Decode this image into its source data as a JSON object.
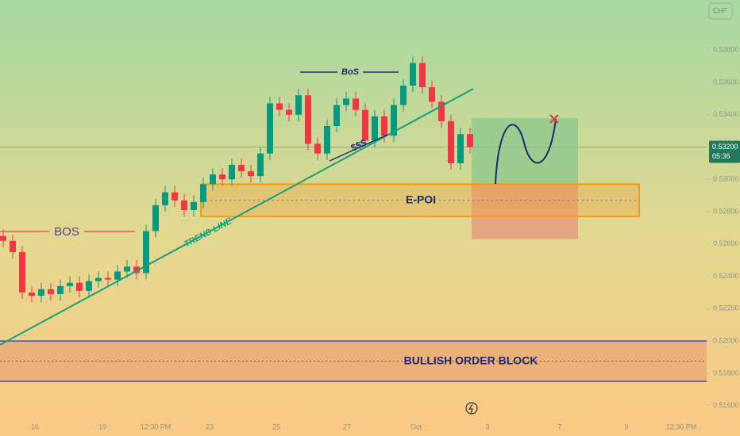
{
  "chart_data": {
    "type": "candlestick",
    "symbol": "CHF",
    "up_color": "#089981",
    "down_color": "#f23645",
    "open": [
      0.5265,
      0.5262,
      0.5255,
      0.523,
      0.5228,
      0.5232,
      0.5229,
      0.5234,
      0.5236,
      0.5231,
      0.5237,
      0.5239,
      0.5238,
      0.5243,
      0.5246,
      0.5242,
      0.5268,
      0.5284,
      0.5292,
      0.5287,
      0.5281,
      0.5286,
      0.5297,
      0.5303,
      0.53,
      0.5309,
      0.5305,
      0.5302,
      0.5316,
      0.5347,
      0.5343,
      0.534,
      0.5352,
      0.5322,
      0.5316,
      0.5333,
      0.5346,
      0.535,
      0.5343,
      0.5324,
      0.5339,
      0.5327,
      0.5346,
      0.5358,
      0.5372,
      0.5357,
      0.5348,
      0.5336,
      0.531,
      0.5328
    ],
    "high": [
      0.5269,
      0.5266,
      0.5259,
      0.5234,
      0.5236,
      0.5236,
      0.5238,
      0.524,
      0.524,
      0.5241,
      0.5243,
      0.5243,
      0.5247,
      0.525,
      0.525,
      0.5272,
      0.5288,
      0.5296,
      0.5296,
      0.5291,
      0.529,
      0.5301,
      0.5307,
      0.5307,
      0.5313,
      0.5313,
      0.5309,
      0.532,
      0.5351,
      0.5351,
      0.5347,
      0.5356,
      0.5356,
      0.5326,
      0.5337,
      0.535,
      0.5354,
      0.5354,
      0.5347,
      0.5343,
      0.5343,
      0.535,
      0.5362,
      0.5376,
      0.5376,
      0.5361,
      0.5352,
      0.534,
      0.5332,
      0.5332
    ],
    "low": [
      0.5258,
      0.5251,
      0.5226,
      0.5224,
      0.5224,
      0.5225,
      0.5225,
      0.523,
      0.5227,
      0.5227,
      0.5233,
      0.5234,
      0.5234,
      0.5239,
      0.5238,
      0.5238,
      0.5264,
      0.528,
      0.5283,
      0.5277,
      0.5277,
      0.5282,
      0.5293,
      0.5296,
      0.5296,
      0.5301,
      0.5298,
      0.5298,
      0.5312,
      0.5339,
      0.5336,
      0.5336,
      0.5318,
      0.5312,
      0.5312,
      0.5329,
      0.5342,
      0.5339,
      0.532,
      0.532,
      0.5323,
      0.5323,
      0.5342,
      0.5354,
      0.5353,
      0.5344,
      0.5332,
      0.5306,
      0.5306,
      0.5316
    ],
    "close": [
      0.5262,
      0.5255,
      0.523,
      0.5228,
      0.5232,
      0.5229,
      0.5234,
      0.5236,
      0.5231,
      0.5237,
      0.5239,
      0.5238,
      0.5243,
      0.5246,
      0.5242,
      0.5268,
      0.5284,
      0.5292,
      0.5287,
      0.5281,
      0.5286,
      0.5297,
      0.5303,
      0.53,
      0.5309,
      0.5305,
      0.5302,
      0.5316,
      0.5347,
      0.5343,
      0.534,
      0.5352,
      0.5322,
      0.5316,
      0.5333,
      0.5346,
      0.535,
      0.5343,
      0.5324,
      0.5339,
      0.5327,
      0.5346,
      0.5358,
      0.5372,
      0.5357,
      0.5348,
      0.5336,
      0.531,
      0.5328,
      0.532
    ],
    "ylim": [
      0.5151,
      0.5411
    ],
    "yticks": [
      {
        "value": 0.516,
        "label": "0.51600"
      },
      {
        "value": 0.518,
        "label": "0.51800"
      },
      {
        "value": 0.52,
        "label": "0.52000"
      },
      {
        "value": 0.522,
        "label": "0.52200"
      },
      {
        "value": 0.524,
        "label": "0.52400"
      },
      {
        "value": 0.526,
        "label": "0.52600"
      },
      {
        "value": 0.528,
        "label": "0.52800"
      },
      {
        "value": 0.53,
        "label": "0.53000"
      },
      {
        "value": 0.534,
        "label": "0.53400"
      },
      {
        "value": 0.536,
        "label": "0.53600"
      },
      {
        "value": 0.538,
        "label": "0.53800"
      }
    ],
    "x_labels": [
      "16",
      "19",
      "12:30 PM",
      "23",
      "25",
      "27",
      "Oct",
      "3",
      "7",
      "9",
      "12:30 PM"
    ],
    "last_price": {
      "value": 0.532,
      "label": "0.53200"
    },
    "countdown": "05:36",
    "epoi": {
      "label": "E-POI",
      "range": [
        0.5277,
        0.5297
      ]
    },
    "target_zone": {
      "range": [
        0.5297,
        0.5338
      ],
      "color": "#7cc48a"
    },
    "stop_zone": {
      "range": [
        0.5263,
        0.5297
      ],
      "color": "#e8907a"
    },
    "order_block": {
      "label": "BULLISH ORDER BLOCK",
      "range": [
        0.5175,
        0.52
      ]
    },
    "annotations": {
      "bos_left": "BOS",
      "bos_top": "BoS",
      "liquidity": "$$$",
      "trend_line": "TREND LINE"
    }
  }
}
